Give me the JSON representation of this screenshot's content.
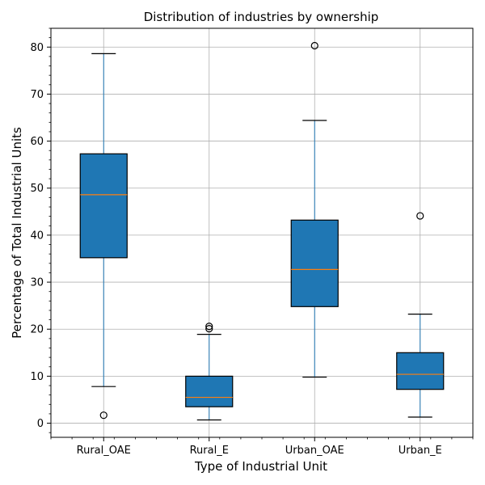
{
  "chart_data": {
    "type": "box",
    "title": "Distribution of industries by ownership",
    "xlabel": "Type of Industrial Unit",
    "ylabel": "Percentage of Total Industrial Units",
    "categories": [
      "Rural_OAE",
      "Rural_E",
      "Urban_OAE",
      "Urban_E"
    ],
    "ylim": [
      -3,
      84
    ],
    "yticks": [
      0,
      10,
      20,
      30,
      40,
      50,
      60,
      70,
      80
    ],
    "grid": true,
    "boxes": [
      {
        "label": "Rural_OAE",
        "whisker_low": 7.8,
        "q1": 35.2,
        "median": 48.6,
        "q3": 57.3,
        "whisker_high": 78.6,
        "outliers": [
          1.7
        ]
      },
      {
        "label": "Rural_E",
        "whisker_low": 0.7,
        "q1": 3.5,
        "median": 5.5,
        "q3": 10.0,
        "whisker_high": 18.9,
        "outliers": [
          20.1,
          20.6
        ]
      },
      {
        "label": "Urban_OAE",
        "whisker_low": 9.8,
        "q1": 24.8,
        "median": 32.7,
        "q3": 43.2,
        "whisker_high": 64.4,
        "outliers": [
          80.3
        ]
      },
      {
        "label": "Urban_E",
        "whisker_low": 1.3,
        "q1": 7.2,
        "median": 10.4,
        "q3": 15.0,
        "whisker_high": 23.2,
        "outliers": [
          44.1
        ]
      }
    ],
    "colors": {
      "box_fill": "#1f77b4",
      "box_edge": "#000000",
      "median": "#ff7f0e",
      "whisker": "#1f77b4",
      "cap": "#000000",
      "grid": "#b0b0b0",
      "outlier_edge": "#000000"
    }
  }
}
